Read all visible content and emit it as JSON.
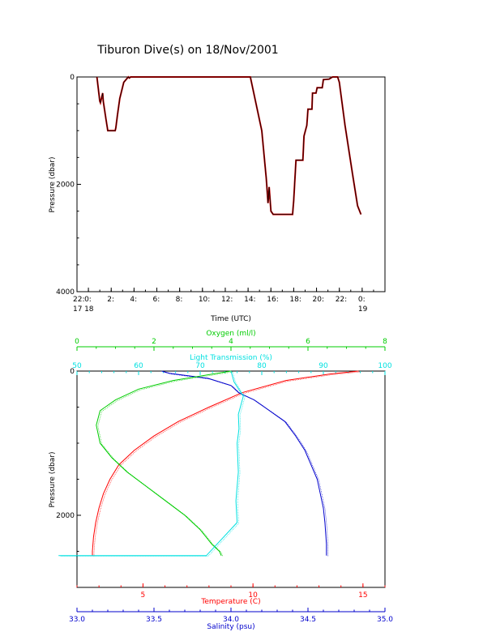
{
  "title": "Tiburon Dive(s) on 18/Nov/2001",
  "colors": {
    "axis": "#000000",
    "temperature": "#ff0000",
    "salinity": "#0000cc",
    "oxygen": "#00cc00",
    "light_transmission": "#00e0e0",
    "dive_trace_outer": "#cc0000",
    "dive_trace_inner": "#000000"
  },
  "chart_data": [
    {
      "type": "line",
      "xlabel": "Time (UTC)",
      "ylabel": "Pressure (dbar)",
      "x_unit": "hours after 2001-11-17 22:00 UTC",
      "xlim": [
        -1,
        26
      ],
      "ylim": [
        4000,
        0
      ],
      "x_ticks": [
        {
          "x": -1,
          "top": "22:",
          "bottom": "17"
        },
        {
          "x": 0,
          "top": "0:",
          "bottom": "18"
        },
        {
          "x": 2,
          "top": "2:",
          "bottom": ""
        },
        {
          "x": 4,
          "top": "4:",
          "bottom": ""
        },
        {
          "x": 6,
          "top": "6:",
          "bottom": ""
        },
        {
          "x": 8,
          "top": "8:",
          "bottom": ""
        },
        {
          "x": 10,
          "top": "10:",
          "bottom": ""
        },
        {
          "x": 12,
          "top": "12:",
          "bottom": ""
        },
        {
          "x": 14,
          "top": "14:",
          "bottom": ""
        },
        {
          "x": 16,
          "top": "16:",
          "bottom": ""
        },
        {
          "x": 18,
          "top": "18:",
          "bottom": ""
        },
        {
          "x": 20,
          "top": "20:",
          "bottom": ""
        },
        {
          "x": 22,
          "top": "22:",
          "bottom": ""
        },
        {
          "x": 24,
          "top": "0:",
          "bottom": "19"
        }
      ],
      "y_ticks": [
        0,
        2000,
        4000
      ],
      "series": [
        {
          "x": [
            0.75,
            1.0,
            1.05,
            1.25,
            1.3,
            1.55,
            1.7,
            2.35,
            2.4,
            2.55,
            2.75,
            3.1,
            3.5,
            3.6,
            3.7,
            13.9,
            14.2,
            15.2,
            15.6,
            15.75,
            15.85,
            16.0,
            16.2,
            17.9,
            18.0,
            18.2,
            18.4,
            18.8,
            18.9,
            19.15,
            19.25,
            19.6,
            19.65,
            19.95,
            20.05,
            20.5,
            20.6,
            21.1,
            21.4,
            21.7,
            21.85,
            22.0,
            22.5,
            23.15,
            23.6,
            23.9
          ],
          "y": [
            0,
            450,
            480,
            300,
            450,
            800,
            1000,
            1000,
            950,
            700,
            400,
            100,
            0,
            20,
            0,
            0,
            0,
            1000,
            1900,
            2350,
            2050,
            2500,
            2560,
            2560,
            2300,
            1550,
            1550,
            1550,
            1100,
            900,
            600,
            600,
            300,
            300,
            200,
            200,
            50,
            40,
            0,
            0,
            0,
            100,
            900,
            1800,
            2400,
            2560
          ]
        }
      ]
    },
    {
      "type": "line",
      "ylabel": "Pressure (dbar)",
      "ylim": [
        3000,
        0
      ],
      "y_ticks": [
        0,
        2000
      ],
      "axes": [
        {
          "label": "Oxygen (ml/l)",
          "position": "top-outer",
          "range": [
            0,
            8
          ],
          "ticks": [
            0,
            2,
            4,
            6,
            8
          ]
        },
        {
          "label": "Light Transmission (%)",
          "position": "top-inner",
          "range": [
            50,
            100
          ],
          "ticks": [
            50,
            60,
            70,
            80,
            90,
            100
          ]
        },
        {
          "label": "Temperature (C)",
          "position": "bottom-inner",
          "range": [
            2,
            16
          ],
          "ticks": [
            5,
            10,
            15
          ]
        },
        {
          "label": "Salinity (psu)",
          "position": "bottom-outer",
          "range": [
            33.0,
            35.0
          ],
          "ticks": [
            33.0,
            33.5,
            34.0,
            34.5,
            35.0
          ]
        }
      ],
      "series": [
        {
          "variable": "temperature",
          "x": [
            14.8,
            13.5,
            11.5,
            9.5,
            8.0,
            6.6,
            5.5,
            4.6,
            3.9,
            3.5,
            3.2,
            3.0,
            2.85,
            2.75,
            2.7,
            2.7
          ],
          "y": [
            0,
            40,
            130,
            300,
            500,
            700,
            900,
            1100,
            1300,
            1500,
            1700,
            1900,
            2100,
            2300,
            2500,
            2560
          ]
        },
        {
          "variable": "salinity",
          "x": [
            33.55,
            33.6,
            33.85,
            34.0,
            34.05,
            34.15,
            34.25,
            34.35,
            34.42,
            34.48,
            34.52,
            34.56,
            34.58,
            34.6,
            34.61,
            34.62,
            34.62
          ],
          "y": [
            0,
            30,
            100,
            200,
            300,
            400,
            550,
            700,
            900,
            1100,
            1300,
            1500,
            1700,
            1900,
            2100,
            2400,
            2560
          ]
        },
        {
          "variable": "oxygen",
          "x": [
            4.0,
            2.5,
            1.6,
            1.0,
            0.6,
            0.5,
            0.6,
            0.9,
            1.3,
            1.8,
            2.3,
            2.8,
            3.2,
            3.5,
            3.7,
            3.75
          ],
          "y": [
            0,
            130,
            250,
            400,
            550,
            750,
            1000,
            1200,
            1400,
            1600,
            1800,
            2000,
            2200,
            2400,
            2500,
            2560
          ]
        },
        {
          "variable": "light_transmission",
          "x": [
            75.0,
            75.5,
            77.0,
            76.2,
            76.3,
            76.0,
            76.2,
            75.8,
            76.0,
            71.0,
            47.0
          ],
          "y": [
            0,
            150,
            350,
            600,
            800,
            1000,
            1400,
            1800,
            2100,
            2560,
            2560
          ]
        }
      ]
    }
  ]
}
